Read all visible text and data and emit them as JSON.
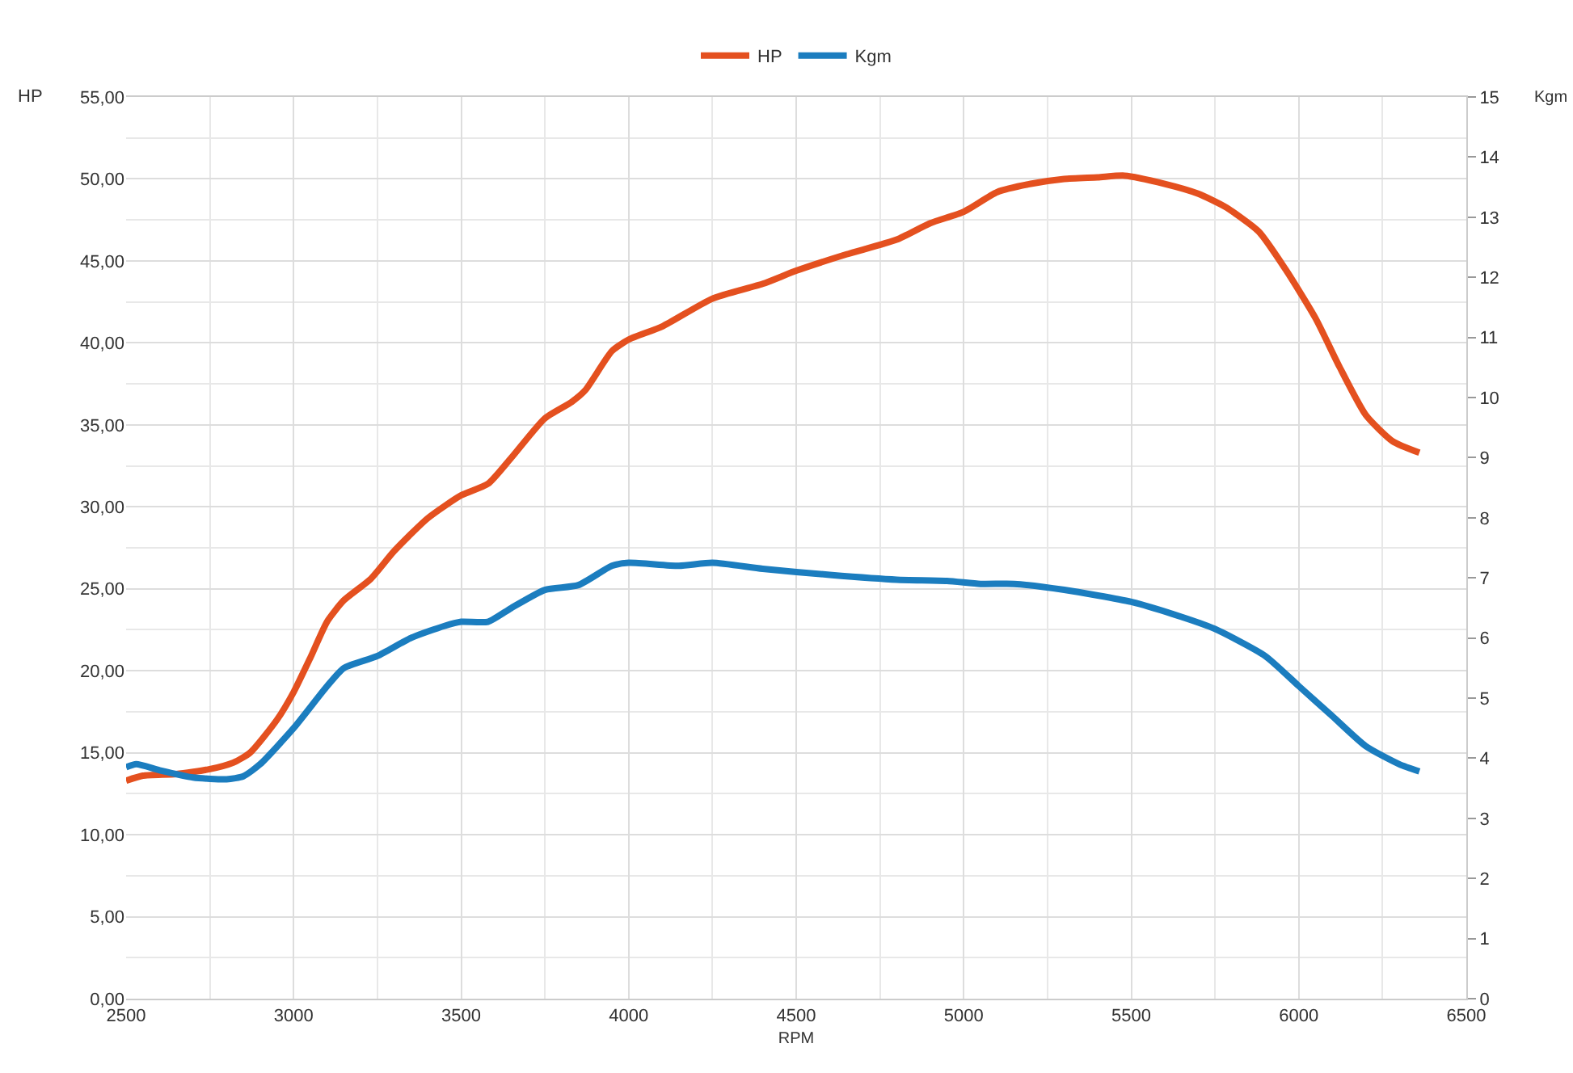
{
  "chart_data": {
    "type": "line",
    "xlabel": "RPM",
    "ylabel": "HP",
    "y2label": "Kgm",
    "legend": "top",
    "grid": true,
    "marker": "none",
    "line_style": "solid",
    "xlim": [
      2500,
      6500
    ],
    "xticks": [
      2500,
      3000,
      3500,
      4000,
      4500,
      5000,
      5500,
      6000,
      6500
    ],
    "ylim": [
      0,
      55
    ],
    "yticks": [
      {
        "value": 0,
        "label": "0,00"
      },
      {
        "value": 5,
        "label": "5,00"
      },
      {
        "value": 10,
        "label": "10,00"
      },
      {
        "value": 15,
        "label": "15,00"
      },
      {
        "value": 20,
        "label": "20,00"
      },
      {
        "value": 25,
        "label": "25,00"
      },
      {
        "value": 30,
        "label": "30,00"
      },
      {
        "value": 35,
        "label": "35,00"
      },
      {
        "value": 40,
        "label": "40,00"
      },
      {
        "value": 45,
        "label": "45,00"
      },
      {
        "value": 50,
        "label": "50,00"
      },
      {
        "value": 55,
        "label": "55,00"
      }
    ],
    "y2lim": [
      0,
      15
    ],
    "y2ticks": [
      0,
      1,
      2,
      3,
      4,
      5,
      6,
      7,
      8,
      9,
      10,
      11,
      12,
      13,
      14,
      15
    ],
    "series": [
      {
        "name": "HP",
        "color": "#e4501f",
        "x": [
          2500,
          2550,
          2650,
          2750,
          2820,
          2870,
          2950,
          3000,
          3050,
          3100,
          3150,
          3230,
          3300,
          3400,
          3500,
          3580,
          3650,
          3750,
          3830,
          3870,
          3950,
          4000,
          4100,
          4250,
          4400,
          4500,
          4650,
          4800,
          4900,
          5000,
          5100,
          5200,
          5300,
          5400,
          5480,
          5600,
          5700,
          5780,
          5880,
          5960,
          6050,
          6120,
          6200,
          6280,
          6360
        ],
        "values": [
          13.3,
          13.6,
          13.7,
          14.0,
          14.4,
          15.0,
          17.0,
          18.7,
          20.8,
          23.0,
          24.3,
          25.6,
          27.3,
          29.3,
          30.7,
          31.4,
          33.0,
          35.4,
          36.4,
          37.1,
          39.5,
          40.2,
          41.0,
          42.7,
          43.6,
          44.4,
          45.4,
          46.3,
          47.3,
          48.0,
          49.2,
          49.7,
          50.0,
          50.1,
          50.2,
          49.7,
          49.1,
          48.3,
          46.8,
          44.5,
          41.5,
          38.6,
          35.6,
          34.0,
          33.3
        ]
      },
      {
        "name": "Kgm",
        "color": "#1b7dbf",
        "axis": "y2",
        "x": [
          2500,
          2530,
          2600,
          2700,
          2800,
          2850,
          2900,
          3000,
          3100,
          3150,
          3250,
          3350,
          3450,
          3500,
          3580,
          3650,
          3750,
          3850,
          3950,
          4000,
          4150,
          4250,
          4400,
          4600,
          4800,
          4950,
          5050,
          5150,
          5300,
          5500,
          5650,
          5750,
          5900,
          6000,
          6100,
          6200,
          6300,
          6360
        ],
        "values": [
          3.85,
          3.9,
          3.8,
          3.68,
          3.65,
          3.7,
          3.9,
          4.5,
          5.2,
          5.5,
          5.7,
          6.0,
          6.2,
          6.27,
          6.27,
          6.5,
          6.8,
          6.88,
          7.2,
          7.25,
          7.2,
          7.25,
          7.15,
          7.05,
          6.97,
          6.95,
          6.9,
          6.9,
          6.8,
          6.6,
          6.35,
          6.15,
          5.7,
          5.2,
          4.7,
          4.2,
          3.9,
          3.78
        ]
      }
    ]
  }
}
